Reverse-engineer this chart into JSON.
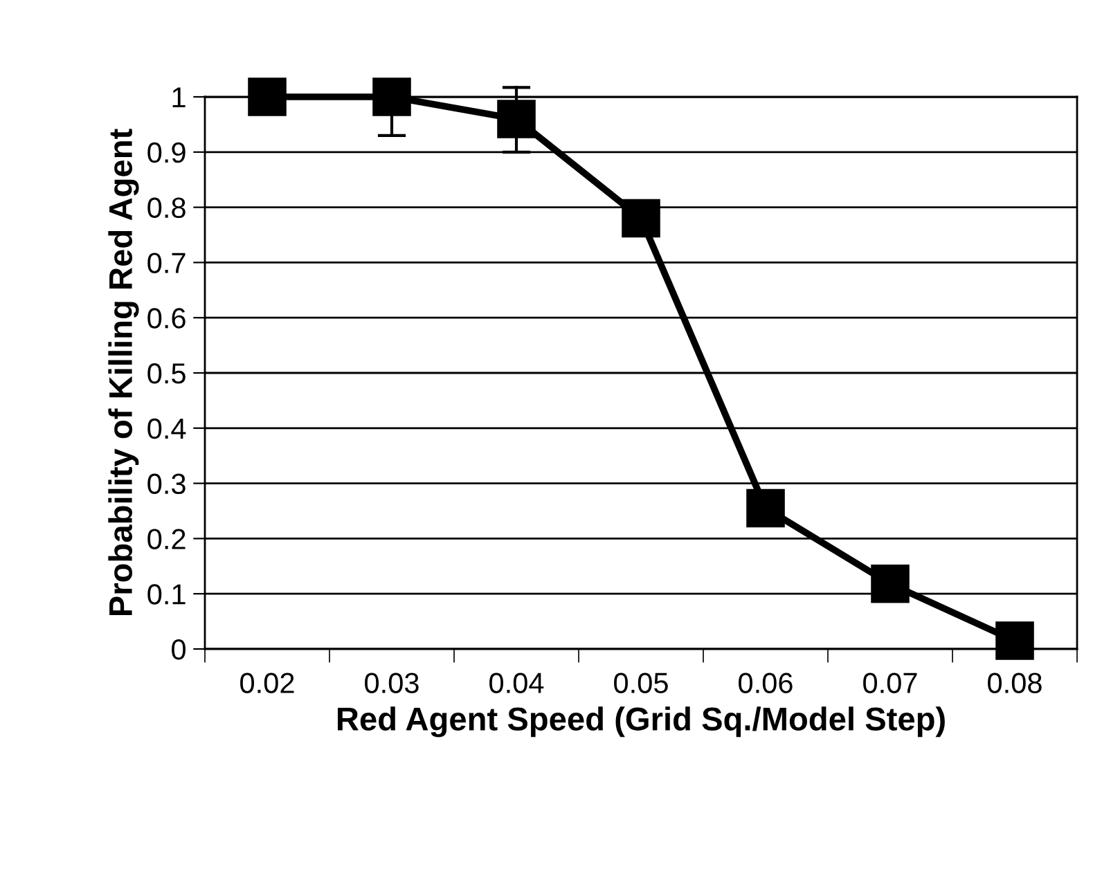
{
  "chart_data": {
    "type": "line",
    "xlabel": "Red Agent Speed (Grid Sq./Model Step)",
    "ylabel": "Probability of Killing Red Agent",
    "categories": [
      "0.02",
      "0.03",
      "0.04",
      "0.05",
      "0.06",
      "0.07",
      "0.08"
    ],
    "values": [
      1.0,
      1.0,
      0.96,
      0.78,
      0.255,
      0.118,
      0.015
    ],
    "errors": [
      null,
      [
        0.93,
        1.0
      ],
      [
        0.9,
        1.017
      ],
      [
        0.75,
        0.81
      ],
      null,
      null,
      null
    ],
    "color": "#000000",
    "marker": "square",
    "line_style": "solid",
    "ylim": [
      0,
      1
    ],
    "yticks": [
      0,
      0.1,
      0.2,
      0.3,
      0.4,
      0.5,
      0.6,
      0.7,
      0.8,
      0.9,
      1
    ],
    "grid": "y"
  }
}
